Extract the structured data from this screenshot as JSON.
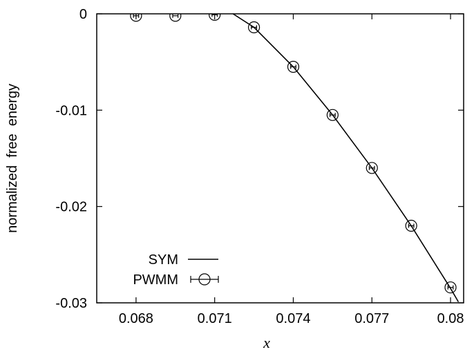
{
  "chart_data": {
    "type": "line",
    "title": "",
    "xlabel": "x",
    "ylabel": "normalized  free  energy",
    "xlim": [
      0.0665,
      0.0805
    ],
    "ylim": [
      -0.03,
      0
    ],
    "x_ticks": [
      0.068,
      0.071,
      0.074,
      0.077,
      0.08
    ],
    "x_tick_labels": [
      "0.068",
      "0.071",
      "0.074",
      "0.077",
      "0.08"
    ],
    "y_ticks": [
      0,
      -0.01,
      -0.02,
      -0.03
    ],
    "y_tick_labels": [
      "0",
      "-0.01",
      "-0.02",
      "-0.03"
    ],
    "grid": false,
    "legend_position": "bottom-left",
    "series": [
      {
        "name": "SYM",
        "style": "line",
        "color": "#000000",
        "x": [
          0.0717,
          0.0725,
          0.074,
          0.0755,
          0.077,
          0.0785,
          0.08,
          0.0803
        ],
        "y": [
          0.0,
          -0.0014,
          -0.0055,
          -0.0105,
          -0.016,
          -0.022,
          -0.0285,
          -0.0299
        ]
      },
      {
        "name": "PWMM",
        "style": "points-with-errorbars",
        "marker": "open-circle",
        "color": "#000000",
        "x": [
          0.068,
          0.0695,
          0.071,
          0.0725,
          0.074,
          0.0755,
          0.077,
          0.0785,
          0.08
        ],
        "y": [
          -0.0002,
          -0.0002,
          -0.0001,
          -0.0014,
          -0.0055,
          -0.0105,
          -0.016,
          -0.022,
          -0.0284
        ],
        "xerr": [
          0.0001,
          0.0001,
          0.0001,
          0.0001,
          0.0001,
          0.0001,
          0.0001,
          0.0001,
          0.0001
        ]
      }
    ]
  }
}
